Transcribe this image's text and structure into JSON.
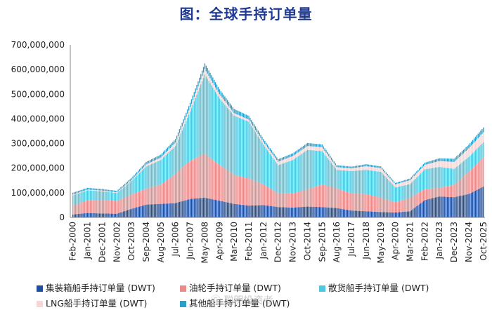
{
  "chart_data": {
    "type": "bar",
    "stacked": true,
    "title": "图：全球手持订单量",
    "ylim": [
      0,
      700000000
    ],
    "yticks": [
      "700,000,000",
      "600,000,000",
      "500,000,000",
      "400,000,000",
      "300,000,000",
      "200,000,000",
      "100,000,000",
      "0"
    ],
    "ytick_values": [
      700000000,
      600000000,
      500000000,
      400000000,
      300000000,
      200000000,
      100000000,
      0
    ],
    "xtick_labels": [
      "Feb-2000",
      "Jan-2001",
      "Dec-2001",
      "Nov-2002",
      "Oct-2003",
      "Sep-2004",
      "Aug-2005",
      "Jul-2006",
      "Jun-2007",
      "May-2008",
      "Apr-2009",
      "Mar-2010",
      "Feb-2011",
      "Jan-2012",
      "Dec-2012",
      "Nov-2013",
      "Oct-2014",
      "Sep-2015",
      "Aug-2016",
      "Jul-2017",
      "Jun-2018",
      "May-2019",
      "Apr-2020",
      "Mar-2021",
      "Feb-2022",
      "Jan-2023",
      "Dec-2023",
      "Nov-2024",
      "Oct-2025"
    ],
    "series": [
      {
        "name": "集装箱船手持订单量 (DWT)",
        "color": "#1f4e9c",
        "values": [
          12000000,
          18000000,
          16000000,
          15000000,
          35000000,
          52000000,
          55000000,
          58000000,
          75000000,
          80000000,
          68000000,
          55000000,
          48000000,
          50000000,
          42000000,
          40000000,
          44000000,
          42000000,
          38000000,
          28000000,
          25000000,
          22000000,
          20000000,
          25000000,
          70000000,
          85000000,
          82000000,
          95000000,
          125000000
        ]
      },
      {
        "name": "油轮手持订单量 (DWT)",
        "color": "#e98b8b",
        "values": [
          35000000,
          52000000,
          55000000,
          52000000,
          58000000,
          65000000,
          78000000,
          120000000,
          155000000,
          180000000,
          145000000,
          118000000,
          110000000,
          85000000,
          55000000,
          58000000,
          70000000,
          92000000,
          80000000,
          70000000,
          70000000,
          58000000,
          42000000,
          55000000,
          45000000,
          35000000,
          50000000,
          90000000,
          120000000
        ]
      },
      {
        "name": "散货船手持订单量 (DWT)",
        "color": "#4ec8df",
        "values": [
          43000000,
          40000000,
          35000000,
          32000000,
          55000000,
          90000000,
          100000000,
          112000000,
          200000000,
          320000000,
          270000000,
          240000000,
          230000000,
          160000000,
          115000000,
          135000000,
          160000000,
          135000000,
          75000000,
          90000000,
          98000000,
          105000000,
          60000000,
          55000000,
          80000000,
          85000000,
          65000000,
          60000000,
          60000000
        ]
      },
      {
        "name": "LNG船手持订单量 (DWT)",
        "color": "#f7d5d5",
        "values": [
          3000000,
          3000000,
          3000000,
          3000000,
          4000000,
          8000000,
          10000000,
          14000000,
          17000000,
          22000000,
          17000000,
          10000000,
          9000000,
          11000000,
          14000000,
          16000000,
          16000000,
          16000000,
          11000000,
          11000000,
          15000000,
          15000000,
          12000000,
          16000000,
          18000000,
          24000000,
          28000000,
          35000000,
          40000000
        ]
      },
      {
        "name": "其他船手持订单量 (DWT)",
        "color": "#2b9fc9",
        "values": [
          7000000,
          7000000,
          6000000,
          6000000,
          8000000,
          10000000,
          12000000,
          14000000,
          18000000,
          23000000,
          20000000,
          17000000,
          15000000,
          12000000,
          10000000,
          11000000,
          12000000,
          11000000,
          8000000,
          7000000,
          8000000,
          7000000,
          6000000,
          7000000,
          9000000,
          11000000,
          13000000,
          15000000,
          20000000
        ]
      }
    ]
  },
  "watermark": "Ⓒ 聪明投资者"
}
